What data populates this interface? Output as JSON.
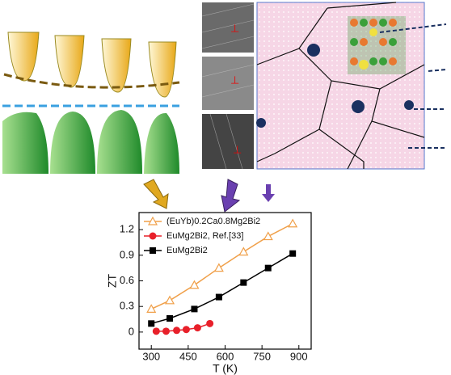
{
  "chart_data": {
    "type": "line",
    "x_label": "T (K)",
    "y_label": "ZT",
    "xlim": [
      250,
      950
    ],
    "xticks": [
      300,
      450,
      600,
      750,
      900
    ],
    "ylim": [
      -0.2,
      1.4
    ],
    "yticks": [
      0.0,
      0.3,
      0.6,
      0.9,
      1.2
    ],
    "legend": "upper left",
    "series": [
      {
        "name": "(EuYb)0.2Ca0.8Mg2Bi2",
        "color": "#f0a04a",
        "marker": "triangle-open",
        "x": [
          300,
          375,
          475,
          575,
          675,
          775,
          875
        ],
        "values": [
          0.27,
          0.37,
          0.55,
          0.75,
          0.94,
          1.12,
          1.27
        ]
      },
      {
        "name": "EuMg2Bi2, Ref.[33]",
        "color": "#e8202a",
        "marker": "circle",
        "x": [
          320,
          360,
          403,
          442,
          488,
          538
        ],
        "values": [
          0.01,
          0.01,
          0.02,
          0.03,
          0.05,
          0.1
        ]
      },
      {
        "name": "EuMg2Bi2",
        "color": "#000000",
        "marker": "square",
        "x": [
          300,
          375,
          475,
          575,
          675,
          775,
          875
        ],
        "values": [
          0.1,
          0.16,
          0.27,
          0.41,
          0.58,
          0.75,
          0.92
        ]
      }
    ]
  }
}
